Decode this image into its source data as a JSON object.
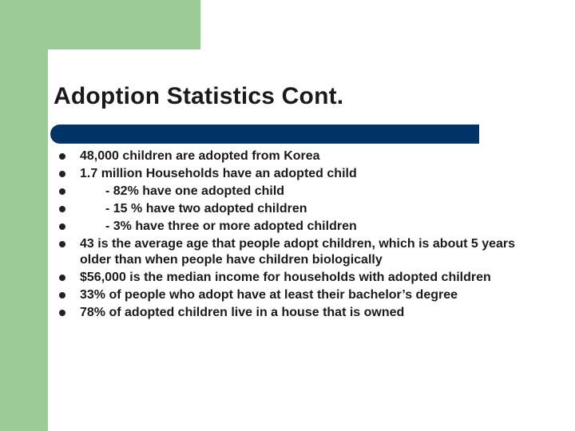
{
  "slide": {
    "title": "Adoption Statistics Cont.",
    "colors": {
      "accent_green": "#9ccb98",
      "title_bar": "#003366"
    },
    "bullets": [
      {
        "text": "48,000 children are adopted from Korea",
        "indent": false
      },
      {
        "text": "1.7 million Households have an adopted child",
        "indent": false
      },
      {
        "text": "- 82% have one adopted child",
        "indent": true
      },
      {
        "text": "- 15 % have two adopted children",
        "indent": true
      },
      {
        "text": "- 3% have three or more adopted children",
        "indent": true
      },
      {
        "text": "43 is the average age that people adopt children, which is about 5 years older than when people have children biologically",
        "indent": false
      },
      {
        "text": "$56,000 is the median income for households with adopted children",
        "indent": false
      },
      {
        "text": "33% of people who adopt have at least their bachelor’s degree",
        "indent": false
      },
      {
        "text": "78% of adopted children live in a house that is owned",
        "indent": false
      }
    ]
  }
}
